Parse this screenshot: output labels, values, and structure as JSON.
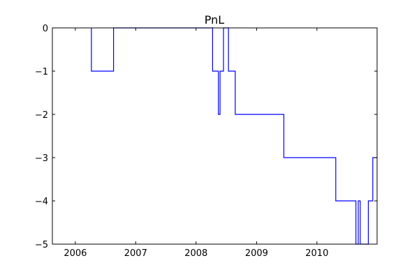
{
  "chart_data": {
    "type": "line",
    "title": "PnL",
    "xlabel": "",
    "ylabel": "",
    "x_is_date": true,
    "xlim": [
      "2005-08-15",
      "2010-12-31"
    ],
    "ylim": [
      -5,
      0
    ],
    "xticks": [
      {
        "value": "2006-01-01",
        "label": "2006"
      },
      {
        "value": "2007-01-01",
        "label": "2007"
      },
      {
        "value": "2008-01-01",
        "label": "2008"
      },
      {
        "value": "2009-01-01",
        "label": "2009"
      },
      {
        "value": "2010-01-01",
        "label": "2010"
      }
    ],
    "yticks": [
      {
        "value": 0,
        "label": "0"
      },
      {
        "value": -1,
        "label": "−1"
      },
      {
        "value": -2,
        "label": "−2"
      },
      {
        "value": -3,
        "label": "−3"
      },
      {
        "value": -4,
        "label": "−4"
      },
      {
        "value": -5,
        "label": "−5"
      }
    ],
    "grid": false,
    "series": [
      {
        "color": "#0000ff",
        "step": true,
        "points": [
          {
            "x": "2006-04-08",
            "y": 0
          },
          {
            "x": "2006-04-08",
            "y": -1
          },
          {
            "x": "2006-08-20",
            "y": -1
          },
          {
            "x": "2006-08-20",
            "y": 0
          },
          {
            "x": "2008-04-10",
            "y": 0
          },
          {
            "x": "2008-04-10",
            "y": -1
          },
          {
            "x": "2008-05-15",
            "y": -1
          },
          {
            "x": "2008-05-15",
            "y": -2
          },
          {
            "x": "2008-05-25",
            "y": -2
          },
          {
            "x": "2008-05-25",
            "y": -1
          },
          {
            "x": "2008-06-15",
            "y": -1
          },
          {
            "x": "2008-06-15",
            "y": 0
          },
          {
            "x": "2008-07-15",
            "y": 0
          },
          {
            "x": "2008-07-15",
            "y": -1
          },
          {
            "x": "2008-08-25",
            "y": -1
          },
          {
            "x": "2008-08-25",
            "y": -2
          },
          {
            "x": "2009-06-15",
            "y": -2
          },
          {
            "x": "2009-06-15",
            "y": -3
          },
          {
            "x": "2010-04-25",
            "y": -3
          },
          {
            "x": "2010-04-25",
            "y": -4
          },
          {
            "x": "2010-08-25",
            "y": -4
          },
          {
            "x": "2010-08-25",
            "y": -5
          },
          {
            "x": "2010-09-08",
            "y": -5
          },
          {
            "x": "2010-09-08",
            "y": -4
          },
          {
            "x": "2010-09-20",
            "y": -4
          },
          {
            "x": "2010-09-20",
            "y": -5
          },
          {
            "x": "2010-11-08",
            "y": -5
          },
          {
            "x": "2010-11-08",
            "y": -4
          },
          {
            "x": "2010-12-05",
            "y": -4
          },
          {
            "x": "2010-12-05",
            "y": -3
          },
          {
            "x": "2010-12-31",
            "y": -3
          }
        ]
      }
    ]
  }
}
